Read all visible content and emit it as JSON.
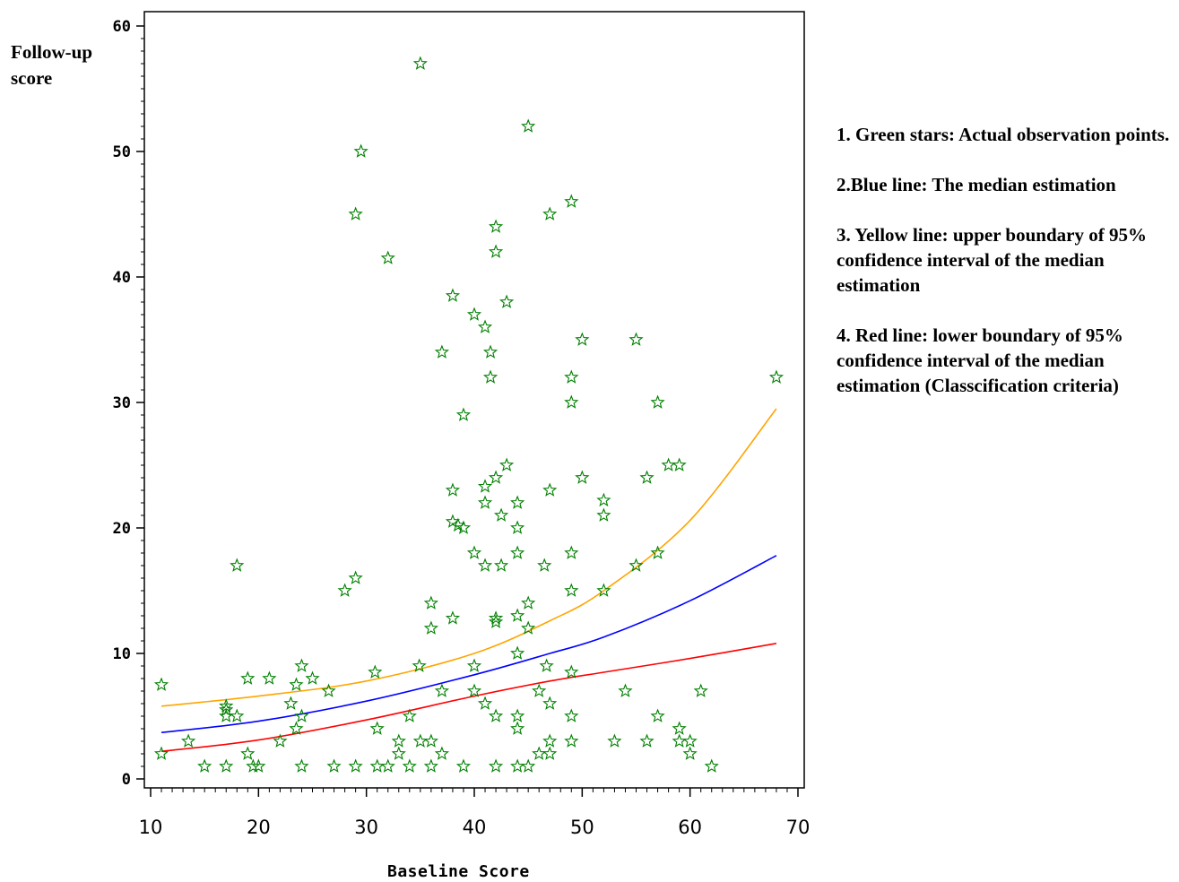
{
  "chart_data": {
    "type": "scatter",
    "xlabel": "Baseline Score",
    "ylabel": "Follow-up score",
    "xlim": [
      10,
      70
    ],
    "ylim": [
      0,
      60
    ],
    "xticks": [
      "10",
      "20",
      "30",
      "40",
      "50",
      "60",
      "70"
    ],
    "yticks": [
      "0",
      "10",
      "20",
      "30",
      "40",
      "50",
      "60"
    ],
    "grid": false,
    "legend_placement": "right",
    "legend": [
      "1. Green stars: Actual observation points.",
      "2.Blue line: The median estimation",
      "3. Yellow line: upper boundary of 95% confidence interval of the median estimation",
      "4. Red line: lower boundary of 95% confidence interval of the median estimation (Classcification criteria)"
    ],
    "colors": {
      "points": "#008000",
      "median": "#0000ff",
      "upper": "#ffa500",
      "lower": "#ff0000"
    },
    "points": [
      [
        35,
        57
      ],
      [
        45,
        52
      ],
      [
        29.5,
        50
      ],
      [
        49,
        46
      ],
      [
        42,
        44
      ],
      [
        29,
        45
      ],
      [
        47,
        45
      ],
      [
        42,
        42
      ],
      [
        32,
        41.5
      ],
      [
        38,
        38.5
      ],
      [
        43,
        38
      ],
      [
        40,
        37
      ],
      [
        41,
        36
      ],
      [
        37,
        34
      ],
      [
        41.5,
        34
      ],
      [
        50,
        35
      ],
      [
        55,
        35
      ],
      [
        41.5,
        32
      ],
      [
        49,
        32
      ],
      [
        68,
        32
      ],
      [
        49,
        30
      ],
      [
        57,
        30
      ],
      [
        39,
        29
      ],
      [
        58,
        25
      ],
      [
        59,
        25
      ],
      [
        43,
        25
      ],
      [
        42,
        24
      ],
      [
        50,
        24
      ],
      [
        56,
        24
      ],
      [
        38,
        23
      ],
      [
        41,
        23.3
      ],
      [
        47,
        23
      ],
      [
        41,
        22
      ],
      [
        44,
        22
      ],
      [
        52,
        22.2
      ],
      [
        42.5,
        21
      ],
      [
        52,
        21
      ],
      [
        38,
        20.5
      ],
      [
        38.5,
        20.2
      ],
      [
        39,
        20
      ],
      [
        44,
        20
      ],
      [
        40,
        18
      ],
      [
        44,
        18
      ],
      [
        49,
        18
      ],
      [
        57,
        18
      ],
      [
        18,
        17
      ],
      [
        41,
        17
      ],
      [
        42.5,
        17
      ],
      [
        46.5,
        17
      ],
      [
        55,
        17
      ],
      [
        29,
        16
      ],
      [
        28,
        15
      ],
      [
        49,
        15
      ],
      [
        52,
        15
      ],
      [
        36,
        14
      ],
      [
        45,
        14
      ],
      [
        38,
        12.8
      ],
      [
        42,
        12.8
      ],
      [
        42,
        12.5
      ],
      [
        44,
        13
      ],
      [
        36,
        12
      ],
      [
        45,
        12
      ],
      [
        44,
        10
      ],
      [
        49,
        8.5
      ],
      [
        30.8,
        8.5
      ],
      [
        34.9,
        9
      ],
      [
        24,
        9
      ],
      [
        40,
        9
      ],
      [
        46.7,
        9
      ],
      [
        11,
        7.5
      ],
      [
        19,
        8
      ],
      [
        21,
        8
      ],
      [
        25,
        8
      ],
      [
        23.5,
        7.5
      ],
      [
        26.5,
        7
      ],
      [
        37,
        7
      ],
      [
        40,
        7
      ],
      [
        46,
        7
      ],
      [
        54,
        7
      ],
      [
        61,
        7
      ],
      [
        17,
        5.8
      ],
      [
        17,
        5.5
      ],
      [
        17,
        5
      ],
      [
        18,
        5
      ],
      [
        23,
        6
      ],
      [
        24,
        5
      ],
      [
        41,
        6
      ],
      [
        47,
        6
      ],
      [
        31,
        4
      ],
      [
        23.5,
        4
      ],
      [
        34,
        5
      ],
      [
        42,
        5
      ],
      [
        44,
        5
      ],
      [
        49,
        5
      ],
      [
        57,
        5
      ],
      [
        59,
        4
      ],
      [
        44,
        4
      ],
      [
        13.5,
        3
      ],
      [
        22,
        3
      ],
      [
        33,
        3
      ],
      [
        35,
        3
      ],
      [
        36,
        3
      ],
      [
        47,
        3
      ],
      [
        49,
        3
      ],
      [
        53,
        3
      ],
      [
        56,
        3
      ],
      [
        59,
        3
      ],
      [
        60,
        3
      ],
      [
        11,
        2
      ],
      [
        19,
        2
      ],
      [
        33,
        2
      ],
      [
        37,
        2
      ],
      [
        46,
        2
      ],
      [
        47,
        2
      ],
      [
        60,
        2
      ],
      [
        15,
        1
      ],
      [
        17,
        1
      ],
      [
        19.5,
        1
      ],
      [
        20,
        1
      ],
      [
        24,
        1
      ],
      [
        27,
        1
      ],
      [
        29,
        1
      ],
      [
        31,
        1
      ],
      [
        32,
        1
      ],
      [
        34,
        1
      ],
      [
        36,
        1
      ],
      [
        39,
        1
      ],
      [
        42,
        1
      ],
      [
        44,
        1
      ],
      [
        45,
        1
      ],
      [
        62,
        1
      ]
    ],
    "series": [
      {
        "values": [
          [
            11,
            3.7
          ],
          [
            20,
            4.6
          ],
          [
            30,
            6.2
          ],
          [
            40,
            8.3
          ],
          [
            47,
            10.0
          ],
          [
            52,
            11.3
          ],
          [
            60,
            14.2
          ],
          [
            68,
            17.8
          ]
        ]
      },
      {
        "values": [
          [
            11,
            5.8
          ],
          [
            20,
            6.6
          ],
          [
            30,
            7.8
          ],
          [
            40,
            10.0
          ],
          [
            47,
            12.6
          ],
          [
            52,
            15.0
          ],
          [
            60,
            20.6
          ],
          [
            68,
            29.5
          ]
        ]
      },
      {
        "values": [
          [
            11,
            2.2
          ],
          [
            20,
            3.1
          ],
          [
            30,
            4.7
          ],
          [
            40,
            6.6
          ],
          [
            47,
            7.8
          ],
          [
            52,
            8.5
          ],
          [
            60,
            9.6
          ],
          [
            68,
            10.8
          ]
        ]
      }
    ]
  }
}
